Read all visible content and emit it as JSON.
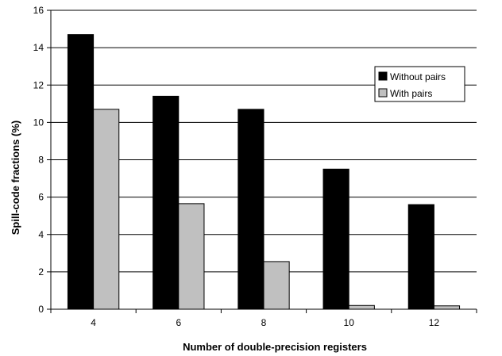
{
  "chart_data": {
    "type": "bar",
    "title": "",
    "xlabel": "Number of double-precision registers",
    "ylabel": "Spill-code fractions (%)",
    "categories": [
      "4",
      "6",
      "8",
      "10",
      "12"
    ],
    "series": [
      {
        "name": "Without pairs",
        "values": [
          14.7,
          11.4,
          10.7,
          7.5,
          5.6
        ],
        "color": "#000000"
      },
      {
        "name": "With pairs",
        "values": [
          10.7,
          5.65,
          2.55,
          0.2,
          0.18
        ],
        "color": "#c0c0c0"
      }
    ],
    "ylim": [
      0,
      16
    ],
    "yticks": [
      "0",
      "2",
      "4",
      "6",
      "8",
      "10",
      "12",
      "14",
      "16"
    ],
    "grid": "horizontal",
    "legend_position": "right"
  }
}
